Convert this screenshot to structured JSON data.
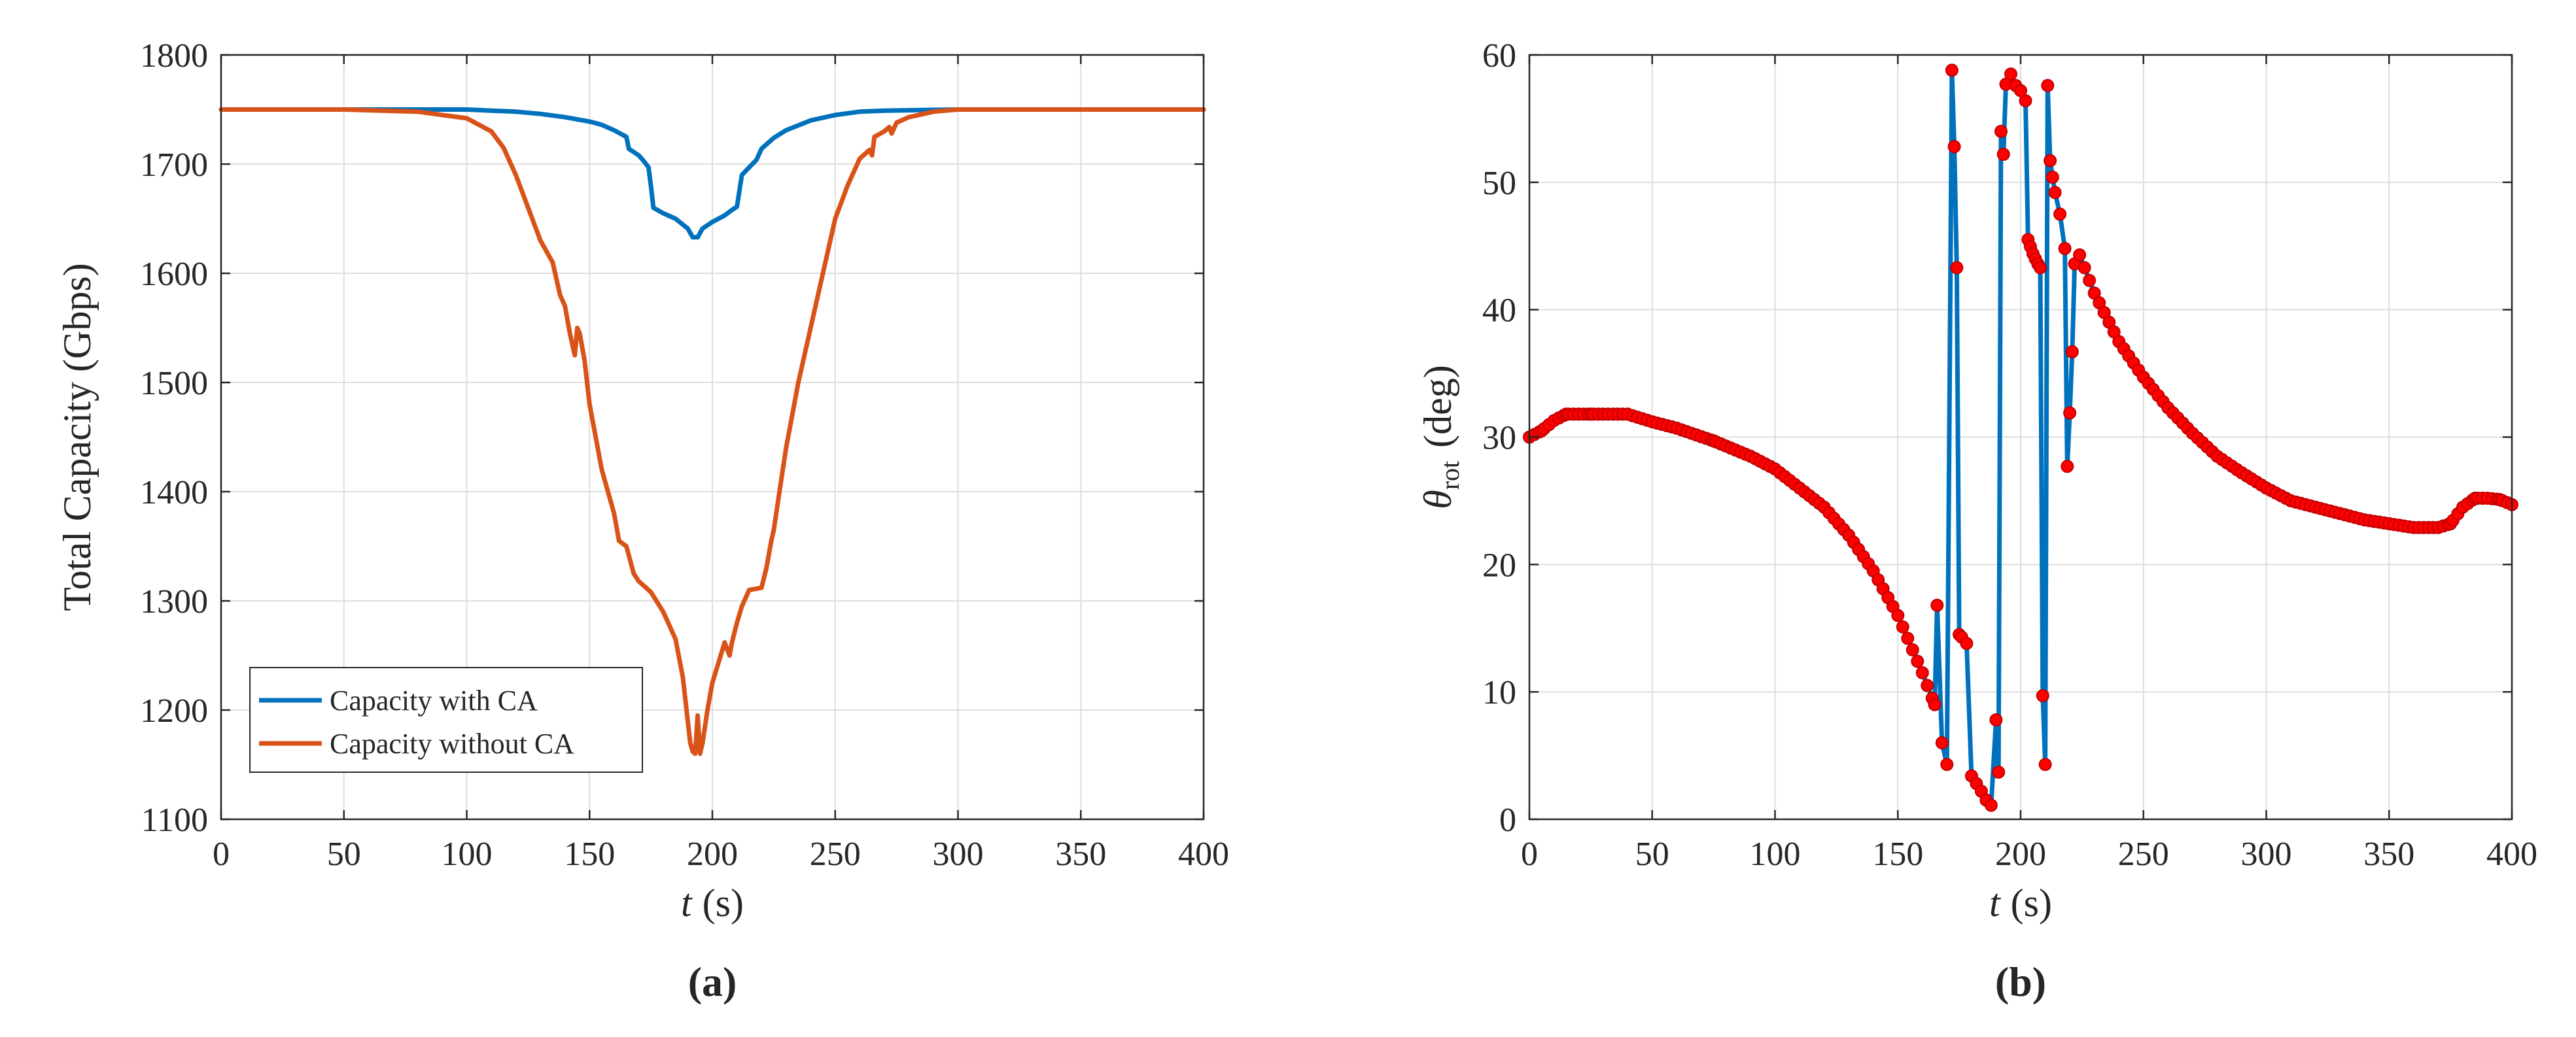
{
  "chart_data": [
    {
      "type": "line",
      "panel_label": "(a)",
      "xlabel": "t",
      "xlabel_unit": "(s)",
      "ylabel": "Total Capacity  (Gbps)",
      "xlim": [
        0,
        400
      ],
      "ylim": [
        1100,
        1800
      ],
      "xticks": [
        0,
        50,
        100,
        150,
        200,
        250,
        300,
        350,
        400
      ],
      "yticks": [
        1100,
        1200,
        1300,
        1400,
        1500,
        1600,
        1700,
        1800
      ],
      "grid": true,
      "legend_position": "bottom-left",
      "series": [
        {
          "name": "Capacity with CA",
          "color": "#0072BD",
          "x": [
            0,
            50,
            100,
            110,
            120,
            130,
            140,
            150,
            155,
            160,
            165,
            166,
            170,
            172,
            174,
            175,
            176,
            180,
            185,
            190,
            192,
            194,
            196,
            200,
            205,
            208,
            210,
            212,
            215,
            218,
            220,
            222,
            225,
            230,
            240,
            250,
            260,
            270,
            300,
            350,
            400
          ],
          "y": [
            1750,
            1750,
            1750,
            1749,
            1748,
            1746,
            1743,
            1739,
            1736,
            1731,
            1725,
            1714,
            1708,
            1703,
            1697,
            1680,
            1660,
            1655,
            1650,
            1641,
            1633,
            1633,
            1641,
            1647,
            1653,
            1658,
            1661,
            1690,
            1697,
            1704,
            1714,
            1718,
            1724,
            1731,
            1740,
            1745,
            1748,
            1749,
            1750,
            1750,
            1750
          ]
        },
        {
          "name": "Capacity without CA",
          "color": "#D95319",
          "x": [
            0,
            50,
            80,
            100,
            110,
            115,
            120,
            125,
            130,
            135,
            138,
            140,
            142,
            144,
            145,
            146,
            148,
            150,
            155,
            160,
            162,
            165,
            168,
            170,
            175,
            180,
            185,
            188,
            190,
            191,
            192,
            193,
            194,
            195,
            196,
            198,
            200,
            205,
            207,
            208,
            210,
            212,
            215,
            220,
            222,
            224,
            225,
            228,
            230,
            235,
            240,
            245,
            250,
            255,
            260,
            264,
            265,
            266,
            270,
            272,
            273,
            275,
            280,
            290,
            300,
            320,
            350,
            400
          ],
          "y": [
            1750,
            1750,
            1748,
            1742,
            1730,
            1715,
            1690,
            1660,
            1630,
            1610,
            1580,
            1570,
            1545,
            1525,
            1550,
            1545,
            1520,
            1480,
            1420,
            1380,
            1355,
            1350,
            1325,
            1318,
            1308,
            1290,
            1265,
            1230,
            1190,
            1170,
            1162,
            1160,
            1195,
            1160,
            1170,
            1200,
            1225,
            1262,
            1250,
            1262,
            1280,
            1295,
            1310,
            1312,
            1330,
            1355,
            1365,
            1410,
            1440,
            1500,
            1550,
            1600,
            1650,
            1680,
            1705,
            1713,
            1708,
            1725,
            1730,
            1734,
            1728,
            1738,
            1743,
            1748,
            1750,
            1750,
            1750,
            1750
          ]
        }
      ]
    },
    {
      "type": "line",
      "panel_label": "(b)",
      "xlabel": "t",
      "xlabel_unit": "(s)",
      "ylabel": "θ",
      "ylabel_subscript": "rot",
      "ylabel_unit": "(deg)",
      "xlim": [
        0,
        400
      ],
      "ylim": [
        0,
        60
      ],
      "xticks": [
        0,
        50,
        100,
        150,
        200,
        250,
        300,
        350,
        400
      ],
      "yticks": [
        0,
        10,
        20,
        30,
        40,
        50,
        60
      ],
      "grid": true,
      "line_color": "#0072BD",
      "marker_color": "#FF0000",
      "marker_edge_color": "#C00000",
      "marker_step": 2,
      "series": [
        {
          "x": [
            0,
            5,
            10,
            15,
            25,
            40,
            50,
            60,
            75,
            90,
            100,
            110,
            120,
            130,
            140,
            150,
            160,
            165,
            166,
            168,
            170,
            172,
            173,
            174,
            175,
            176,
            178,
            180,
            182,
            184,
            186,
            188,
            190,
            191,
            192,
            193,
            194,
            196,
            198,
            200,
            202,
            203,
            205,
            207,
            208,
            209,
            210,
            211,
            212,
            213,
            214,
            216,
            218,
            219,
            220,
            221,
            222,
            224,
            230,
            240,
            250,
            260,
            270,
            280,
            290,
            300,
            310,
            320,
            330,
            340,
            350,
            360,
            370,
            375,
            380,
            385,
            390,
            395,
            400
          ],
          "y": [
            30,
            30.5,
            31.3,
            31.8,
            31.8,
            31.8,
            31.2,
            30.7,
            29.7,
            28.5,
            27.5,
            26,
            24.5,
            22.3,
            19.5,
            16,
            11.5,
            9,
            16.8,
            6,
            4.3,
            58.8,
            52.8,
            43.3,
            14.5,
            14.3,
            13.8,
            3.4,
            2.8,
            2.2,
            1.5,
            1.1,
            7.8,
            3.7,
            54,
            52.2,
            57.7,
            58.5,
            57.6,
            57.2,
            56.4,
            45.5,
            44.4,
            43.6,
            43.3,
            9.7,
            4.3,
            57.6,
            51.7,
            50.4,
            49.2,
            47.5,
            44.8,
            27.7,
            31.9,
            36.7,
            43.6,
            44.3,
            41.3,
            37.5,
            34.7,
            32.3,
            30.3,
            28.5,
            27.2,
            26,
            25,
            24.5,
            24,
            23.5,
            23.2,
            22.9,
            22.9,
            23.2,
            24.5,
            25.2,
            25.2,
            25.1,
            24.7
          ]
        }
      ]
    }
  ]
}
